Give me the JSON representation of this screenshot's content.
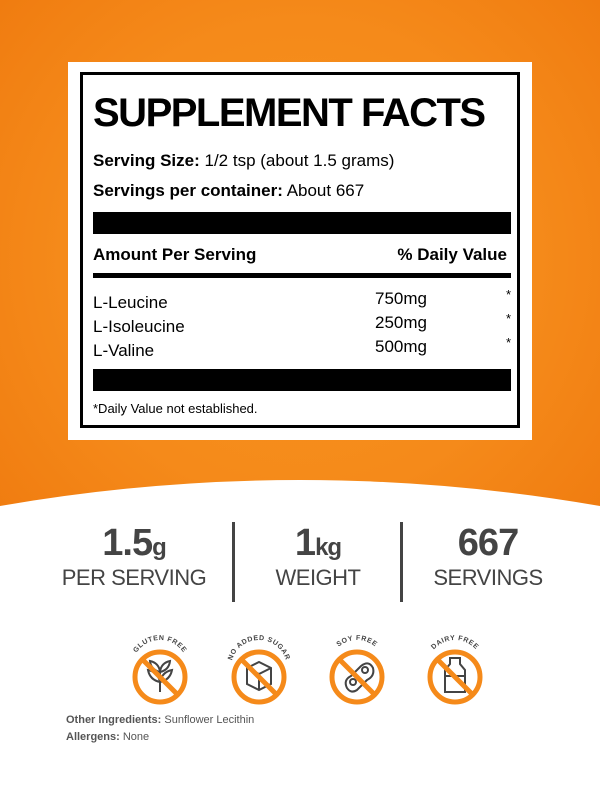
{
  "label": {
    "title": "SUPPLEMENT FACTS",
    "serving_size_label": "Serving Size:",
    "serving_size_value": "1/2 tsp (about 1.5 grams)",
    "servings_label": "Servings per container:",
    "servings_value": "About 667",
    "col_amount": "Amount Per Serving",
    "col_dv": "% Daily Value",
    "rows": [
      {
        "name": "L-Leucine",
        "amount": "750mg",
        "dv": "*"
      },
      {
        "name": "L-Isoleucine",
        "amount": "250mg",
        "dv": "*"
      },
      {
        "name": "L-Valine",
        "amount": "500mg",
        "dv": "*"
      }
    ],
    "footnote": "*Daily Value not established."
  },
  "stats": [
    {
      "value": "1.5",
      "unit": "g",
      "label": "PER SERVING"
    },
    {
      "value": "1",
      "unit": "kg",
      "label": "WEIGHT"
    },
    {
      "value": "667",
      "unit": "",
      "label": "SERVINGS"
    }
  ],
  "badges": [
    {
      "label": "GLUTEN FREE",
      "icon": "wheat-icon"
    },
    {
      "label": "NO ADDED SUGAR",
      "icon": "sugar-cube-icon"
    },
    {
      "label": "SOY FREE",
      "icon": "soybean-icon"
    },
    {
      "label": "DAIRY FREE",
      "icon": "milk-bottle-icon"
    }
  ],
  "footer": {
    "ingredients_label": "Other Ingredients:",
    "ingredients_value": "Sunflower Lecithin",
    "allergens_label": "Allergens:",
    "allergens_value": "None"
  },
  "colors": {
    "orange": "#f58a1a",
    "text_gray": "#444444"
  }
}
